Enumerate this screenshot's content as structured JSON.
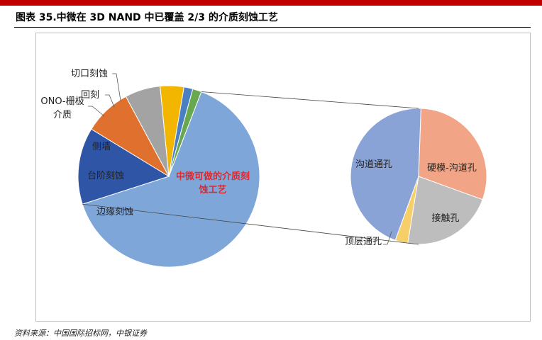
{
  "header": {
    "title": "图表 35.中微在 3D NAND 中已覆盖 2/3 的介质刻蚀工艺"
  },
  "footer": {
    "source": "资料来源：中国国际招标网，中银证券"
  },
  "chart_data": [
    {
      "type": "pie",
      "name": "main-pie",
      "labels": [
        "中微可做的介质刻蚀工艺",
        "边缘刻蚀",
        "台阶刻蚀",
        "侧墙",
        "ONO-栅极介质",
        "回刻",
        "切口刻蚀"
      ],
      "label_lines": [
        [
          "中微可做的介质刻",
          "蚀工艺"
        ],
        [
          "边缘刻蚀"
        ],
        [
          "台阶刻蚀"
        ],
        [
          "侧墙"
        ],
        [
          "ONO-栅极",
          "介质"
        ],
        [
          "回刻"
        ],
        [
          "切口刻蚀"
        ]
      ],
      "values": [
        61,
        13,
        8,
        6,
        4,
        1.5,
        1.5
      ],
      "colors": [
        "#7ea6d8",
        "#2f55a6",
        "#e0702d",
        "#a3a3a3",
        "#f2b500",
        "#4a7fc4",
        "#68a84f"
      ]
    },
    {
      "type": "pie",
      "name": "detail-pie",
      "labels": [
        "硬模-沟道孔",
        "接触孔",
        "顶层通孔",
        "沟道通孔"
      ],
      "label_lines": [
        [
          "硬模-沟道孔"
        ],
        [
          "接触孔"
        ],
        [
          "顶层通孔"
        ],
        [
          "沟道通孔"
        ]
      ],
      "values": [
        30,
        22,
        3,
        45
      ],
      "colors": [
        "#f1a586",
        "#bdbdbd",
        "#f6cf6a",
        "#8aa3d6"
      ]
    }
  ]
}
